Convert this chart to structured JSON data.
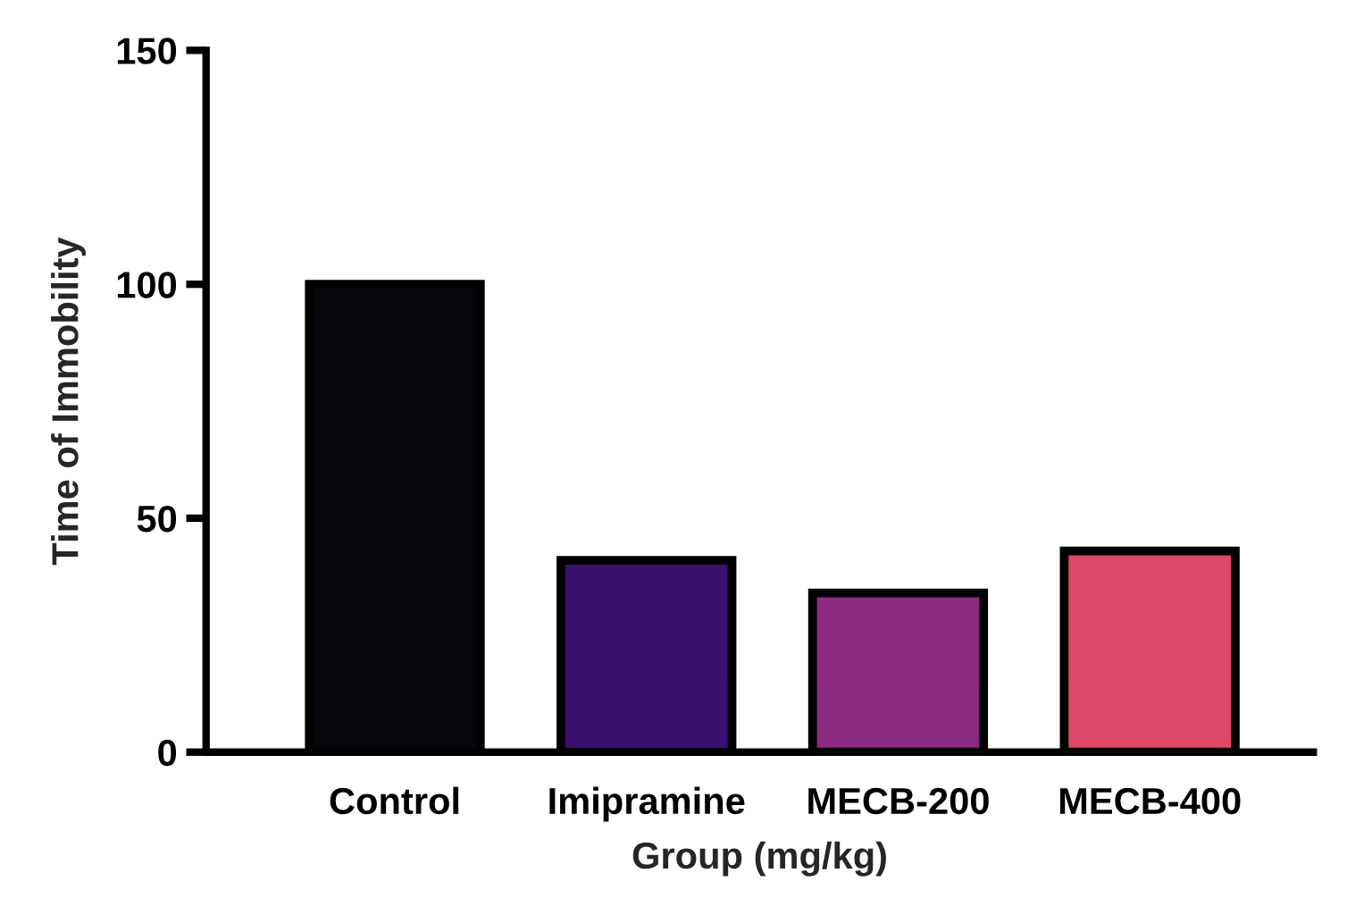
{
  "chart_data": {
    "type": "bar",
    "xlabel": "Group (mg/kg)",
    "ylabel": "Time of Immobility",
    "categories": [
      "Control",
      "Imipramine",
      "MECB-200",
      "MECB-400"
    ],
    "values": [
      100,
      41,
      34,
      43
    ],
    "colors": [
      "#07050c",
      "#3b0f70",
      "#8c2981",
      "#de4968"
    ],
    "ylim": [
      0,
      150
    ],
    "yticks": [
      0,
      50,
      100,
      150
    ],
    "grid": false,
    "legend": false
  }
}
